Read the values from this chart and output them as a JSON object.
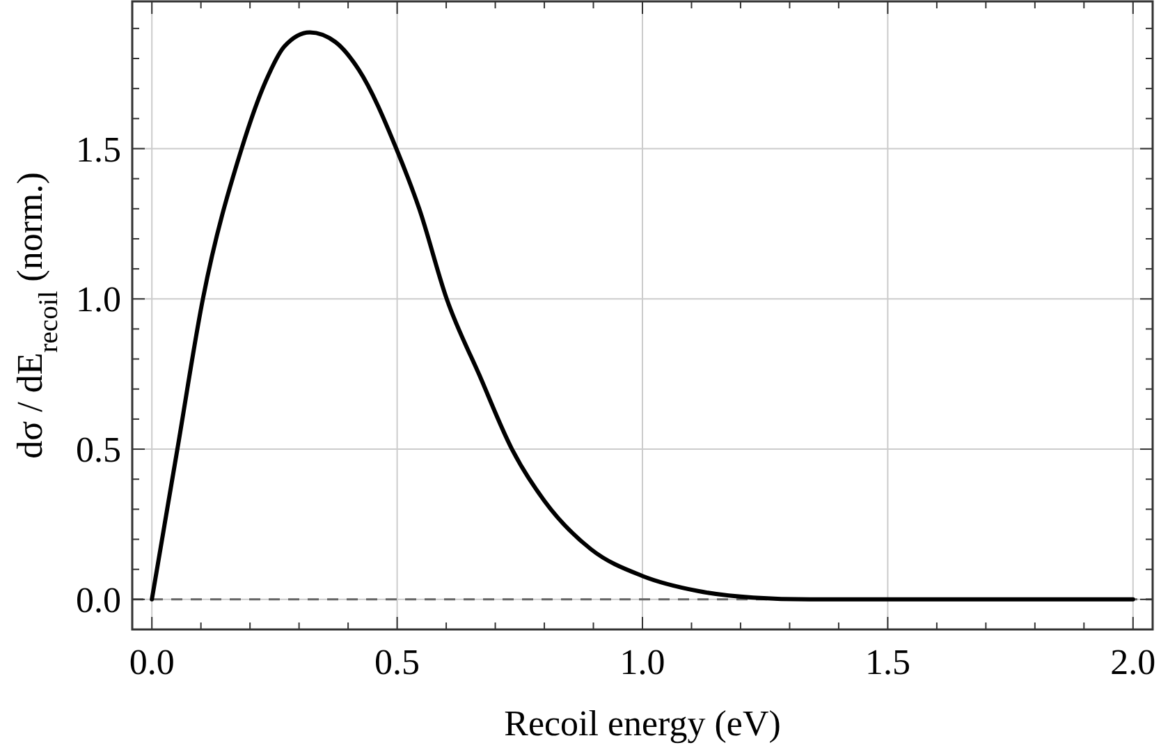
{
  "chart_data": {
    "type": "line",
    "xlabel": "Recoil energy (eV)",
    "ylabel": "dσ / dE$_{recoil}$ (norm.)",
    "x": [
      0,
      0.052,
      0.104,
      0.183,
      0.232,
      0.27,
      0.322,
      0.374,
      0.422,
      0.5,
      0.545,
      0.601,
      0.668,
      0.734,
      0.8,
      0.895,
      1.0,
      1.113,
      1.226,
      1.34,
      1.5,
      2.0
    ],
    "series": [
      {
        "color": "#000000",
        "values": [
          0,
          0.5,
          1.0,
          1.5,
          1.724,
          1.84,
          1.887,
          1.855,
          1.762,
          1.493,
          1.3,
          1.0,
          0.745,
          0.5,
          0.328,
          0.167,
          0.078,
          0.028,
          0.006,
          0,
          0,
          0
        ]
      }
    ],
    "xlim": [
      -0.04,
      2.04
    ],
    "ylim": [
      -0.1,
      1.99
    ],
    "xticks": [
      {
        "value": 0,
        "label": "0.0"
      },
      {
        "value": 0.1,
        "label": null
      },
      {
        "value": 0.2,
        "label": null
      },
      {
        "value": 0.3,
        "label": null
      },
      {
        "value": 0.4,
        "label": null
      },
      {
        "value": 0.5,
        "label": "0.5"
      },
      {
        "value": 0.6,
        "label": null
      },
      {
        "value": 0.7,
        "label": null
      },
      {
        "value": 0.8,
        "label": null
      },
      {
        "value": 0.9,
        "label": null
      },
      {
        "value": 1,
        "label": "1.0"
      },
      {
        "value": 1.1,
        "label": null
      },
      {
        "value": 1.2,
        "label": null
      },
      {
        "value": 1.3,
        "label": null
      },
      {
        "value": 1.4,
        "label": null
      },
      {
        "value": 1.5,
        "label": "1.5"
      },
      {
        "value": 1.6,
        "label": null
      },
      {
        "value": 1.7,
        "label": null
      },
      {
        "value": 1.8,
        "label": null
      },
      {
        "value": 1.9,
        "label": null
      },
      {
        "value": 2,
        "label": "2.0"
      }
    ],
    "yticks": [
      {
        "value": 0,
        "label": "0.0"
      },
      {
        "value": 0.1,
        "label": null
      },
      {
        "value": 0.2,
        "label": null
      },
      {
        "value": 0.3,
        "label": null
      },
      {
        "value": 0.4,
        "label": null
      },
      {
        "value": 0.5,
        "label": "0.5"
      },
      {
        "value": 0.6,
        "label": null
      },
      {
        "value": 0.7,
        "label": null
      },
      {
        "value": 0.8,
        "label": null
      },
      {
        "value": 0.9,
        "label": null
      },
      {
        "value": 1,
        "label": "1.0"
      },
      {
        "value": 1.1,
        "label": null
      },
      {
        "value": 1.2,
        "label": null
      },
      {
        "value": 1.3,
        "label": null
      },
      {
        "value": 1.4,
        "label": null
      },
      {
        "value": 1.5,
        "label": "1.5"
      },
      {
        "value": 1.6,
        "label": null
      },
      {
        "value": 1.7,
        "label": null
      },
      {
        "value": 1.8,
        "label": null
      },
      {
        "value": 1.9,
        "label": null
      }
    ],
    "grid": true,
    "line_style": "solid",
    "ref_lines": [
      {
        "axis": "y",
        "value": 0,
        "color": "#666666",
        "line_style": "dashed"
      }
    ]
  }
}
